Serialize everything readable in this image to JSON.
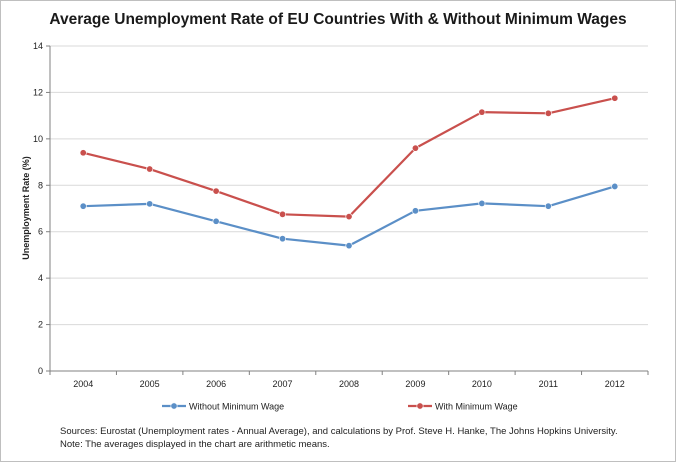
{
  "chart_data": {
    "type": "line",
    "title": "Average Unemployment Rate of EU Countries With & Without Minimum Wages",
    "xlabel": "",
    "ylabel": "Unemployment Rate (%)",
    "categories": [
      "2004",
      "2005",
      "2006",
      "2007",
      "2008",
      "2009",
      "2010",
      "2011",
      "2012"
    ],
    "ylim": [
      0,
      14
    ],
    "yticks": [
      0,
      2,
      4,
      6,
      8,
      10,
      12,
      14
    ],
    "grid": true,
    "legend_position": "bottom",
    "series": [
      {
        "name": "Without Minimum Wage",
        "color": "#5b8fc7",
        "values": [
          7.1,
          7.2,
          6.45,
          5.7,
          5.4,
          6.9,
          7.22,
          7.1,
          7.95
        ]
      },
      {
        "name": "With Minimum Wage",
        "color": "#c9504d",
        "values": [
          9.4,
          8.7,
          7.75,
          6.75,
          6.65,
          9.6,
          11.15,
          11.1,
          11.75
        ]
      }
    ]
  },
  "footnotes": {
    "sources": "Sources: Eurostat (Unemployment rates - Annual Average), and calculations by Prof. Steve H. Hanke, The Johns Hopkins University.",
    "note": "Note: The averages displayed in the chart are arithmetic means."
  }
}
